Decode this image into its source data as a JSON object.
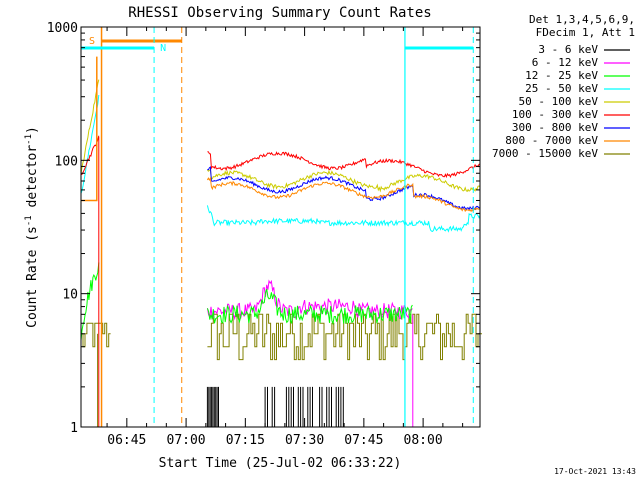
{
  "chart_data": {
    "type": "line",
    "title": "RHESSI Observing Summary Count Rates",
    "xlabel": "Start Time (25-Jul-02 06:33:22)",
    "ylabel": "Count Rate (s",
    "ylabel_sup1": "-1",
    "ylabel_mid": " detector",
    "ylabel_sup2": "-1",
    "ylabel_end": ")",
    "y_scale": "log",
    "ylim": [
      1,
      1000
    ],
    "x_unit": "minutes after 06:33:22",
    "xlim": [
      0,
      101
    ],
    "x_ticks": [
      {
        "label": "06:45",
        "x": 11.6
      },
      {
        "label": "07:00",
        "x": 26.6
      },
      {
        "label": "07:15",
        "x": 41.6
      },
      {
        "label": "07:30",
        "x": 56.6
      },
      {
        "label": "07:45",
        "x": 71.6
      },
      {
        "label": "08:00",
        "x": 86.6
      }
    ],
    "y_ticks": [
      {
        "label": "1",
        "y": 1
      },
      {
        "label": "10",
        "y": 10
      },
      {
        "label": "100",
        "y": 100
      },
      {
        "label": "1000",
        "y": 1000
      }
    ],
    "legend_header": [
      "Det 1,3,4,5,6,9,",
      "FDecim 1, Att 1"
    ],
    "legend_position": "right",
    "series": [
      {
        "name": "3 - 6 keV",
        "color": "#000000"
      },
      {
        "name": "6 - 12 keV",
        "color": "#ff00ff"
      },
      {
        "name": "12 - 25 keV",
        "color": "#00ff00"
      },
      {
        "name": "25 - 50 keV",
        "color": "#00ffff"
      },
      {
        "name": "50 - 100 keV",
        "color": "#cccc00"
      },
      {
        "name": "100 - 300 keV",
        "color": "#ff0000"
      },
      {
        "name": "300 - 800 keV",
        "color": "#0000ff"
      },
      {
        "name": "800 - 7000 keV",
        "color": "#ff8800"
      },
      {
        "name": "7000 - 15000 keV",
        "color": "#808000"
      }
    ],
    "markers": {
      "s_label": "S",
      "n_label": "N",
      "saa_color": "#ff8800",
      "night_color": "#00ffff"
    }
  },
  "timestamp": "17-Oct-2021 13:43"
}
